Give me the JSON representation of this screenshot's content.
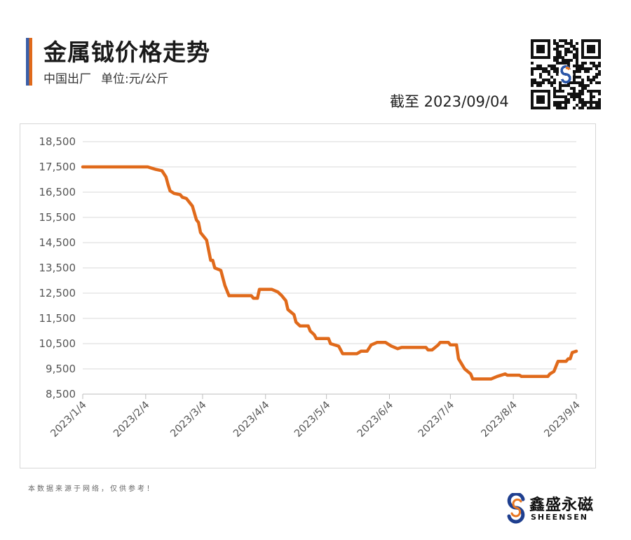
{
  "header": {
    "title": "金属钺价格走势",
    "subtitle_origin": "中国出厂",
    "subtitle_unit": "单位:元/公斤",
    "as_of": "截至 2023/09/04"
  },
  "footer": {
    "note": "本数据来源于网络，仅供参考！",
    "brand_cn": "鑫盛永磁",
    "brand_en": "SHEENSEN",
    "brand_colors": {
      "blue": "#1f3f8f",
      "orange": "#e87722"
    }
  },
  "qr_icon": "qr-code-icon",
  "chart_data": {
    "type": "line",
    "title": "金属钺价格走势",
    "xlabel": "",
    "ylabel": "",
    "ylim": [
      8500,
      18500
    ],
    "yticks": [
      "18,500",
      "17,500",
      "16,500",
      "15,500",
      "14,500",
      "13,500",
      "12,500",
      "11,500",
      "10,500",
      "9,500",
      "8,500"
    ],
    "ytick_values": [
      18500,
      17500,
      16500,
      15500,
      14500,
      13500,
      12500,
      11500,
      10500,
      9500,
      8500
    ],
    "xlim": [
      "2023-01-04",
      "2023-09-04"
    ],
    "xticks": [
      "2023/1/4",
      "2023/2/4",
      "2023/3/4",
      "2023/4/4",
      "2023/5/4",
      "2023/6/4",
      "2023/7/4",
      "2023/8/4",
      "2023/9/4"
    ],
    "xtick_dates": [
      "2023-01-04",
      "2023-02-04",
      "2023-03-04",
      "2023-04-04",
      "2023-05-04",
      "2023-06-04",
      "2023-07-04",
      "2023-08-04",
      "2023-09-04"
    ],
    "grid": true,
    "line_color": "#e06a1b",
    "series": [
      {
        "points": [
          [
            "2023-01-04",
            17500
          ],
          [
            "2023-02-05",
            17500
          ],
          [
            "2023-02-07",
            17450
          ],
          [
            "2023-02-09",
            17400
          ],
          [
            "2023-02-12",
            17350
          ],
          [
            "2023-02-14",
            17100
          ],
          [
            "2023-02-15",
            16800
          ],
          [
            "2023-02-16",
            16550
          ],
          [
            "2023-02-18",
            16450
          ],
          [
            "2023-02-21",
            16400
          ],
          [
            "2023-02-22",
            16300
          ],
          [
            "2023-02-24",
            16250
          ],
          [
            "2023-02-27",
            15950
          ],
          [
            "2023-03-01",
            15400
          ],
          [
            "2023-03-02",
            15300
          ],
          [
            "2023-03-03",
            14900
          ],
          [
            "2023-03-06",
            14600
          ],
          [
            "2023-03-08",
            13800
          ],
          [
            "2023-03-09",
            13800
          ],
          [
            "2023-03-10",
            13500
          ],
          [
            "2023-03-13",
            13400
          ],
          [
            "2023-03-15",
            12800
          ],
          [
            "2023-03-17",
            12400
          ],
          [
            "2023-03-28",
            12400
          ],
          [
            "2023-03-29",
            12300
          ],
          [
            "2023-03-31",
            12300
          ],
          [
            "2023-04-01",
            12650
          ],
          [
            "2023-04-07",
            12650
          ],
          [
            "2023-04-10",
            12550
          ],
          [
            "2023-04-12",
            12400
          ],
          [
            "2023-04-14",
            12200
          ],
          [
            "2023-04-15",
            11850
          ],
          [
            "2023-04-18",
            11650
          ],
          [
            "2023-04-19",
            11350
          ],
          [
            "2023-04-21",
            11200
          ],
          [
            "2023-04-25",
            11200
          ],
          [
            "2023-04-26",
            11000
          ],
          [
            "2023-04-28",
            10850
          ],
          [
            "2023-04-29",
            10700
          ],
          [
            "2023-05-05",
            10700
          ],
          [
            "2023-05-06",
            10500
          ],
          [
            "2023-05-10",
            10400
          ],
          [
            "2023-05-12",
            10100
          ],
          [
            "2023-05-19",
            10100
          ],
          [
            "2023-05-21",
            10200
          ],
          [
            "2023-05-24",
            10200
          ],
          [
            "2023-05-26",
            10450
          ],
          [
            "2023-05-29",
            10550
          ],
          [
            "2023-06-02",
            10550
          ],
          [
            "2023-06-05",
            10400
          ],
          [
            "2023-06-08",
            10300
          ],
          [
            "2023-06-10",
            10350
          ],
          [
            "2023-06-22",
            10350
          ],
          [
            "2023-06-23",
            10250
          ],
          [
            "2023-06-25",
            10250
          ],
          [
            "2023-06-28",
            10450
          ],
          [
            "2023-06-29",
            10550
          ],
          [
            "2023-07-03",
            10550
          ],
          [
            "2023-07-04",
            10450
          ],
          [
            "2023-07-07",
            10450
          ],
          [
            "2023-07-08",
            9900
          ],
          [
            "2023-07-11",
            9500
          ],
          [
            "2023-07-14",
            9300
          ],
          [
            "2023-07-15",
            9100
          ],
          [
            "2023-07-24",
            9100
          ],
          [
            "2023-07-27",
            9200
          ],
          [
            "2023-07-31",
            9300
          ],
          [
            "2023-08-01",
            9250
          ],
          [
            "2023-08-07",
            9250
          ],
          [
            "2023-08-08",
            9200
          ],
          [
            "2023-08-21",
            9200
          ],
          [
            "2023-08-22",
            9300
          ],
          [
            "2023-08-24",
            9400
          ],
          [
            "2023-08-26",
            9800
          ],
          [
            "2023-08-30",
            9800
          ],
          [
            "2023-08-31",
            9900
          ],
          [
            "2023-09-01",
            9900
          ],
          [
            "2023-09-02",
            10150
          ],
          [
            "2023-09-04",
            10200
          ]
        ]
      }
    ]
  }
}
